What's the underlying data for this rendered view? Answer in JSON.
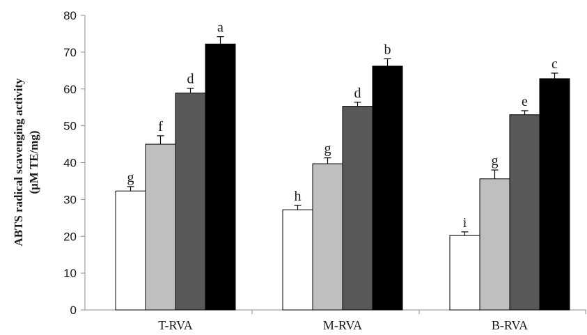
{
  "chart_data": {
    "type": "bar",
    "title": "",
    "xlabel": "",
    "ylabel": "ABTS radical scavenging activity",
    "ylabel_unit": "(μM TE/mg)",
    "ylim": [
      0,
      80
    ],
    "yticks": [
      0,
      10,
      20,
      30,
      40,
      50,
      60,
      70,
      80
    ],
    "categories": [
      "T-RVA",
      "M-RVA",
      "B-RVA"
    ],
    "grid": false,
    "legend": "none",
    "series": [
      {
        "color": "#ffffff",
        "values": [
          32.3,
          27.2,
          20.2
        ],
        "errors": [
          1.2,
          1.2,
          1.0
        ],
        "letters": [
          "g",
          "h",
          "i"
        ]
      },
      {
        "color": "#bfbfbf",
        "values": [
          45.0,
          39.7,
          35.6
        ],
        "errors": [
          2.3,
          1.6,
          2.4
        ],
        "letters": [
          "f",
          "g",
          "g"
        ]
      },
      {
        "color": "#595959",
        "values": [
          58.9,
          55.3,
          53.0
        ],
        "errors": [
          1.3,
          1.1,
          1.1
        ],
        "letters": [
          "d",
          "d",
          "e"
        ]
      },
      {
        "color": "#000000",
        "values": [
          72.2,
          66.2,
          62.8
        ],
        "errors": [
          2.0,
          2.0,
          1.5
        ],
        "letters": [
          "a",
          "b",
          "c"
        ]
      }
    ]
  }
}
